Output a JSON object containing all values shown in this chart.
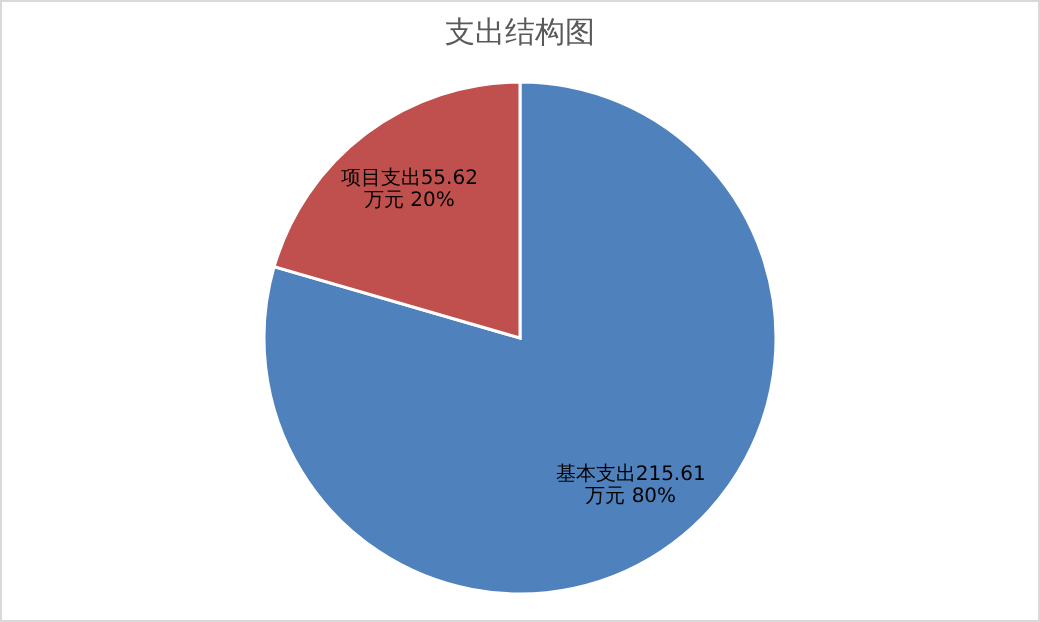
{
  "chart_data": {
    "type": "pie",
    "title": "支出结构图",
    "categories": [
      "基本支出",
      "项目支出"
    ],
    "values": [
      215.61,
      55.62
    ],
    "value_labels": [
      "215.61万元 80%",
      "55.62万元 20%"
    ],
    "colors": [
      "#4f81bd",
      "#c0504d"
    ]
  }
}
